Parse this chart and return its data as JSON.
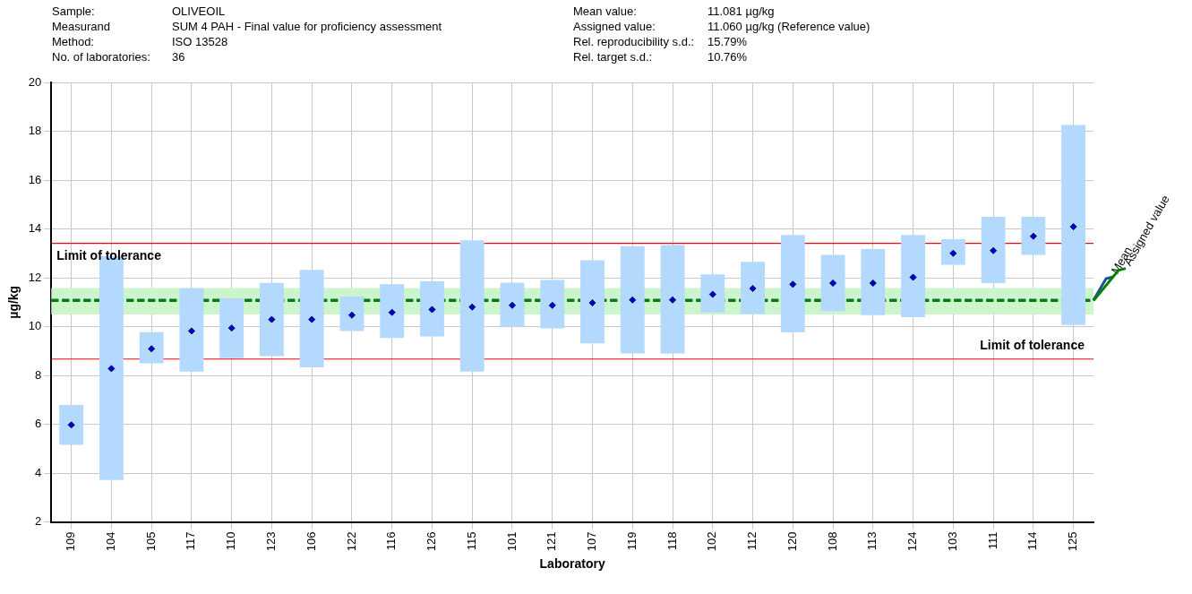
{
  "chart_data": {
    "type": "bar",
    "xlabel": "Laboratory",
    "ylabel": "µg/kg",
    "annotations": [
      "Sample:",
      "OLIVEOIL",
      "Mean value:",
      "11.081 µg/kg",
      "Measurand",
      "SUM 4 PAH - Final value for proficiency assessment",
      "Assigned value:",
      "11.060 µg/kg (Reference value)",
      "Method:",
      "ISO 13528",
      "Rel. reproducibility s.d.:",
      "15.79%",
      "No. of laboratories:",
      "36",
      "Rel. target s.d.:",
      "10.76%"
    ],
    "categories": [
      "109",
      "104",
      "105",
      "117",
      "110",
      "123",
      "106",
      "122",
      "116",
      "126",
      "115",
      "101",
      "121",
      "107",
      "119",
      "118",
      "102",
      "112",
      "120",
      "108",
      "113",
      "124",
      "103",
      "111",
      "114",
      "125"
    ],
    "ylim": [
      2,
      20
    ],
    "yticks": [
      2,
      4,
      6,
      8,
      10,
      12,
      14,
      16,
      18,
      20
    ],
    "grid": true,
    "legend": false,
    "series": [
      {
        "type": "bar",
        "color": "#b3d9ff",
        "base": [
          5.16,
          3.72,
          8.5,
          8.16,
          8.71,
          8.79,
          8.33,
          9.82,
          9.53,
          9.6,
          8.16,
          10.0,
          9.93,
          9.31,
          8.9,
          8.9,
          10.58,
          10.51,
          9.76,
          10.63,
          10.47,
          10.39,
          12.53,
          11.78,
          12.94,
          10.06
        ],
        "values": [
          1.63,
          9.16,
          1.27,
          3.41,
          2.45,
          3.0,
          3.99,
          1.41,
          2.2,
          2.25,
          5.37,
          1.8,
          1.98,
          3.41,
          4.39,
          4.44,
          1.56,
          2.14,
          3.99,
          2.31,
          2.7,
          3.36,
          1.05,
          2.72,
          1.56,
          8.2
        ]
      },
      {
        "type": "scatter",
        "color": "#0000cc",
        "marker": "diamond",
        "x": [
          "109",
          "104",
          "105",
          "117",
          "110",
          "123",
          "106",
          "122",
          "116",
          "126",
          "115",
          "101",
          "121",
          "107",
          "119",
          "118",
          "102",
          "112",
          "120",
          "108",
          "113",
          "124",
          "103",
          "111",
          "114",
          "125"
        ],
        "values": [
          5.97,
          8.28,
          9.09,
          9.82,
          9.94,
          10.29,
          10.29,
          10.47,
          10.58,
          10.7,
          10.8,
          10.87,
          10.87,
          10.97,
          11.09,
          11.09,
          11.32,
          11.56,
          11.73,
          11.78,
          11.78,
          12.02,
          13.0,
          13.11,
          13.7,
          14.09
        ]
      }
    ],
    "bands": [
      {
        "axis": "y",
        "from": 10.5,
        "to": 11.58,
        "color": "#ccf5cc"
      }
    ],
    "ref_lines": [
      {
        "axis": "y",
        "value": 13.41,
        "label": "Limit of tolerance",
        "color": "#ff0000",
        "line_style": "solid"
      },
      {
        "axis": "y",
        "value": 8.67,
        "label": "Limit of tolerance",
        "color": "#ff0000",
        "line_style": "solid"
      },
      {
        "axis": "y",
        "value": 11.081,
        "label": "Mean",
        "color": "#1f4e9a",
        "line_style": "dashed"
      },
      {
        "axis": "y",
        "value": 11.06,
        "label": "Assigned value",
        "color": "#008000",
        "line_style": "dashed"
      }
    ]
  }
}
